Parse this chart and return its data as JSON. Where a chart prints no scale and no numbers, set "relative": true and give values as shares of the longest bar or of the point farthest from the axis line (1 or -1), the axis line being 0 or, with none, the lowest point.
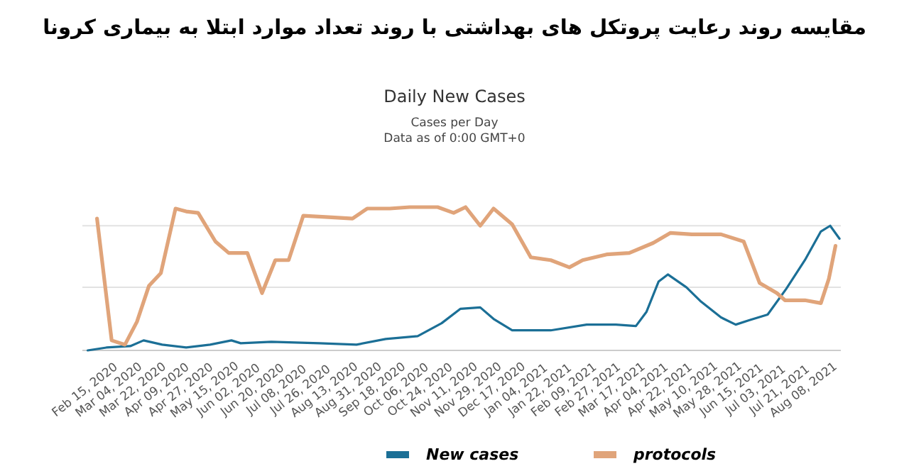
{
  "chart_data": {
    "type": "line",
    "title": "مقایسه روند رعایت پروتکل های بهداشتی با روند تعداد موارد ابتلا به بیماری کرونا",
    "subtitle": "Daily New Cases",
    "annotations": [
      "Cases per Day",
      "Data as of 0:00 GMT+0"
    ],
    "relative": true,
    "ref_lines": [
      {
        "axis": "y",
        "value": 0.44,
        "color": "#e2e2e2"
      },
      {
        "axis": "y",
        "value": 0.87,
        "color": "#e2e2e2"
      }
    ],
    "legend": "bottom",
    "marker": "none",
    "line_style": "solid",
    "xlim": [
      "2020-02-13",
      "2021-09-05"
    ],
    "xticks": [
      {
        "value": "2020-02-15",
        "label": "Feb 15, 2020"
      },
      {
        "value": "2020-03-04",
        "label": "Mar 04, 2020"
      },
      {
        "value": "2020-03-22",
        "label": "Mar 22, 2020"
      },
      {
        "value": "2020-04-09",
        "label": "Apr 09, 2020"
      },
      {
        "value": "2020-04-27",
        "label": "Apr 27, 2020"
      },
      {
        "value": "2020-05-15",
        "label": "May 15, 2020"
      },
      {
        "value": "2020-06-02",
        "label": "Jun 02, 2020"
      },
      {
        "value": "2020-06-20",
        "label": "Jun 20, 2020"
      },
      {
        "value": "2020-07-08",
        "label": "Jul 08, 2020"
      },
      {
        "value": "2020-07-26",
        "label": "Jul 26, 2020"
      },
      {
        "value": "2020-08-13",
        "label": "Aug 13, 2020"
      },
      {
        "value": "2020-08-31",
        "label": "Aug 31, 2020"
      },
      {
        "value": "2020-09-18",
        "label": "Sep 18, 2020"
      },
      {
        "value": "2020-10-06",
        "label": "Oct 06, 2020"
      },
      {
        "value": "2020-10-24",
        "label": "Oct 24, 2020"
      },
      {
        "value": "2020-11-11",
        "label": "Nov 11, 2020"
      },
      {
        "value": "2020-11-29",
        "label": "Nov 29, 2020"
      },
      {
        "value": "2020-12-17",
        "label": "Dec 17, 2020"
      },
      {
        "value": "2021-01-04",
        "label": "Jan 04, 2021"
      },
      {
        "value": "2021-01-22",
        "label": "Jan 22, 2021"
      },
      {
        "value": "2021-02-09",
        "label": "Feb 09, 2021"
      },
      {
        "value": "2021-02-27",
        "label": "Feb 27, 2021"
      },
      {
        "value": "2021-03-17",
        "label": "Mar 17, 2021"
      },
      {
        "value": "2021-04-04",
        "label": "Apr 04, 2021"
      },
      {
        "value": "2021-04-22",
        "label": "Apr 22, 2021"
      },
      {
        "value": "2021-05-10",
        "label": "May 10, 2021"
      },
      {
        "value": "2021-05-28",
        "label": "May 28, 2021"
      },
      {
        "value": "2021-06-15",
        "label": "Jun 15, 2021"
      },
      {
        "value": "2021-07-03",
        "label": "Jul 03, 2021"
      },
      {
        "value": "2021-07-21",
        "label": "Jul 21, 2021"
      },
      {
        "value": "2021-08-08",
        "label": "Aug 08, 2021"
      }
    ],
    "series": [
      {
        "name": "New cases",
        "color": "#1b6f96",
        "x": [
          "2020-02-17",
          "2020-03-02",
          "2020-03-20",
          "2020-03-30",
          "2020-04-13",
          "2020-05-01",
          "2020-05-19",
          "2020-06-04",
          "2020-06-11",
          "2020-07-04",
          "2020-08-09",
          "2020-09-06",
          "2020-09-28",
          "2020-10-22",
          "2020-11-09",
          "2020-11-23",
          "2020-12-08",
          "2020-12-18",
          "2021-01-01",
          "2021-01-30",
          "2021-02-26",
          "2021-03-20",
          "2021-04-04",
          "2021-04-12",
          "2021-04-21",
          "2021-04-28",
          "2021-05-12",
          "2021-05-23",
          "2021-06-07",
          "2021-06-18",
          "2021-06-28",
          "2021-07-12",
          "2021-07-26",
          "2021-08-09",
          "2021-08-21",
          "2021-08-28",
          "2021-09-04"
        ],
        "values": [
          0,
          0.02,
          0.03,
          0.07,
          0.04,
          0.02,
          0.04,
          0.07,
          0.05,
          0.06,
          0.05,
          0.04,
          0.08,
          0.1,
          0.19,
          0.29,
          0.3,
          0.22,
          0.14,
          0.14,
          0.18,
          0.18,
          0.17,
          0.27,
          0.48,
          0.53,
          0.44,
          0.34,
          0.23,
          0.18,
          0.21,
          0.25,
          0.43,
          0.63,
          0.83,
          0.87,
          0.78
        ]
      },
      {
        "name": "protocols",
        "color": "#e0a47a",
        "x": [
          "2020-02-24",
          "2020-03-06",
          "2020-03-16",
          "2020-03-25",
          "2020-04-03",
          "2020-04-12",
          "2020-04-23",
          "2020-05-01",
          "2020-05-10",
          "2020-05-23",
          "2020-06-02",
          "2020-06-16",
          "2020-06-27",
          "2020-07-07",
          "2020-07-17",
          "2020-07-28",
          "2020-08-16",
          "2020-09-03",
          "2020-09-14",
          "2020-10-01",
          "2020-10-16",
          "2020-11-06",
          "2020-11-18",
          "2020-11-27",
          "2020-12-08",
          "2020-12-18",
          "2021-01-01",
          "2021-01-15",
          "2021-01-30",
          "2021-02-13",
          "2021-02-23",
          "2021-03-13",
          "2021-03-30",
          "2021-04-17",
          "2021-04-30",
          "2021-05-16",
          "2021-06-07",
          "2021-06-24",
          "2021-07-06",
          "2021-07-19",
          "2021-07-25",
          "2021-08-09",
          "2021-08-21",
          "2021-08-27",
          "2021-09-01"
        ],
        "values": [
          0.92,
          0.07,
          0.04,
          0.2,
          0.45,
          0.54,
          0.99,
          0.97,
          0.96,
          0.76,
          0.68,
          0.68,
          0.4,
          0.63,
          0.63,
          0.94,
          0.93,
          0.92,
          0.99,
          0.99,
          1,
          1,
          0.96,
          1,
          0.87,
          0.99,
          0.88,
          0.65,
          0.63,
          0.58,
          0.63,
          0.67,
          0.68,
          0.75,
          0.82,
          0.81,
          0.81,
          0.76,
          0.47,
          0.4,
          0.35,
          0.35,
          0.33,
          0.5,
          0.73
        ]
      }
    ]
  }
}
